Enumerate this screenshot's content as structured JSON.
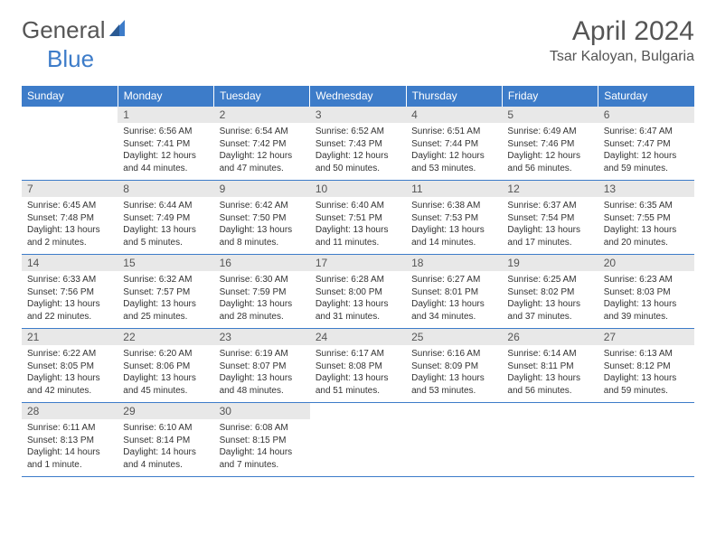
{
  "logo": {
    "general": "General",
    "blue": "Blue"
  },
  "title": "April 2024",
  "location": "Tsar Kaloyan, Bulgaria",
  "colors": {
    "header_bg": "#3d7cc9",
    "header_text": "#ffffff",
    "daynum_bg": "#e8e8e8",
    "body_text": "#333333",
    "divider": "#3d7cc9",
    "page_bg": "#ffffff"
  },
  "typography": {
    "title_fontsize": 30,
    "location_fontsize": 16,
    "header_fontsize": 12,
    "daynum_fontsize": 12,
    "body_fontsize": 10,
    "font_family": "Arial"
  },
  "weekdays": [
    "Sunday",
    "Monday",
    "Tuesday",
    "Wednesday",
    "Thursday",
    "Friday",
    "Saturday"
  ],
  "weeks": [
    [
      {
        "n": "",
        "sr": "",
        "ss": "",
        "dl": ""
      },
      {
        "n": "1",
        "sr": "Sunrise: 6:56 AM",
        "ss": "Sunset: 7:41 PM",
        "dl": "Daylight: 12 hours and 44 minutes."
      },
      {
        "n": "2",
        "sr": "Sunrise: 6:54 AM",
        "ss": "Sunset: 7:42 PM",
        "dl": "Daylight: 12 hours and 47 minutes."
      },
      {
        "n": "3",
        "sr": "Sunrise: 6:52 AM",
        "ss": "Sunset: 7:43 PM",
        "dl": "Daylight: 12 hours and 50 minutes."
      },
      {
        "n": "4",
        "sr": "Sunrise: 6:51 AM",
        "ss": "Sunset: 7:44 PM",
        "dl": "Daylight: 12 hours and 53 minutes."
      },
      {
        "n": "5",
        "sr": "Sunrise: 6:49 AM",
        "ss": "Sunset: 7:46 PM",
        "dl": "Daylight: 12 hours and 56 minutes."
      },
      {
        "n": "6",
        "sr": "Sunrise: 6:47 AM",
        "ss": "Sunset: 7:47 PM",
        "dl": "Daylight: 12 hours and 59 minutes."
      }
    ],
    [
      {
        "n": "7",
        "sr": "Sunrise: 6:45 AM",
        "ss": "Sunset: 7:48 PM",
        "dl": "Daylight: 13 hours and 2 minutes."
      },
      {
        "n": "8",
        "sr": "Sunrise: 6:44 AM",
        "ss": "Sunset: 7:49 PM",
        "dl": "Daylight: 13 hours and 5 minutes."
      },
      {
        "n": "9",
        "sr": "Sunrise: 6:42 AM",
        "ss": "Sunset: 7:50 PM",
        "dl": "Daylight: 13 hours and 8 minutes."
      },
      {
        "n": "10",
        "sr": "Sunrise: 6:40 AM",
        "ss": "Sunset: 7:51 PM",
        "dl": "Daylight: 13 hours and 11 minutes."
      },
      {
        "n": "11",
        "sr": "Sunrise: 6:38 AM",
        "ss": "Sunset: 7:53 PM",
        "dl": "Daylight: 13 hours and 14 minutes."
      },
      {
        "n": "12",
        "sr": "Sunrise: 6:37 AM",
        "ss": "Sunset: 7:54 PM",
        "dl": "Daylight: 13 hours and 17 minutes."
      },
      {
        "n": "13",
        "sr": "Sunrise: 6:35 AM",
        "ss": "Sunset: 7:55 PM",
        "dl": "Daylight: 13 hours and 20 minutes."
      }
    ],
    [
      {
        "n": "14",
        "sr": "Sunrise: 6:33 AM",
        "ss": "Sunset: 7:56 PM",
        "dl": "Daylight: 13 hours and 22 minutes."
      },
      {
        "n": "15",
        "sr": "Sunrise: 6:32 AM",
        "ss": "Sunset: 7:57 PM",
        "dl": "Daylight: 13 hours and 25 minutes."
      },
      {
        "n": "16",
        "sr": "Sunrise: 6:30 AM",
        "ss": "Sunset: 7:59 PM",
        "dl": "Daylight: 13 hours and 28 minutes."
      },
      {
        "n": "17",
        "sr": "Sunrise: 6:28 AM",
        "ss": "Sunset: 8:00 PM",
        "dl": "Daylight: 13 hours and 31 minutes."
      },
      {
        "n": "18",
        "sr": "Sunrise: 6:27 AM",
        "ss": "Sunset: 8:01 PM",
        "dl": "Daylight: 13 hours and 34 minutes."
      },
      {
        "n": "19",
        "sr": "Sunrise: 6:25 AM",
        "ss": "Sunset: 8:02 PM",
        "dl": "Daylight: 13 hours and 37 minutes."
      },
      {
        "n": "20",
        "sr": "Sunrise: 6:23 AM",
        "ss": "Sunset: 8:03 PM",
        "dl": "Daylight: 13 hours and 39 minutes."
      }
    ],
    [
      {
        "n": "21",
        "sr": "Sunrise: 6:22 AM",
        "ss": "Sunset: 8:05 PM",
        "dl": "Daylight: 13 hours and 42 minutes."
      },
      {
        "n": "22",
        "sr": "Sunrise: 6:20 AM",
        "ss": "Sunset: 8:06 PM",
        "dl": "Daylight: 13 hours and 45 minutes."
      },
      {
        "n": "23",
        "sr": "Sunrise: 6:19 AM",
        "ss": "Sunset: 8:07 PM",
        "dl": "Daylight: 13 hours and 48 minutes."
      },
      {
        "n": "24",
        "sr": "Sunrise: 6:17 AM",
        "ss": "Sunset: 8:08 PM",
        "dl": "Daylight: 13 hours and 51 minutes."
      },
      {
        "n": "25",
        "sr": "Sunrise: 6:16 AM",
        "ss": "Sunset: 8:09 PM",
        "dl": "Daylight: 13 hours and 53 minutes."
      },
      {
        "n": "26",
        "sr": "Sunrise: 6:14 AM",
        "ss": "Sunset: 8:11 PM",
        "dl": "Daylight: 13 hours and 56 minutes."
      },
      {
        "n": "27",
        "sr": "Sunrise: 6:13 AM",
        "ss": "Sunset: 8:12 PM",
        "dl": "Daylight: 13 hours and 59 minutes."
      }
    ],
    [
      {
        "n": "28",
        "sr": "Sunrise: 6:11 AM",
        "ss": "Sunset: 8:13 PM",
        "dl": "Daylight: 14 hours and 1 minute."
      },
      {
        "n": "29",
        "sr": "Sunrise: 6:10 AM",
        "ss": "Sunset: 8:14 PM",
        "dl": "Daylight: 14 hours and 4 minutes."
      },
      {
        "n": "30",
        "sr": "Sunrise: 6:08 AM",
        "ss": "Sunset: 8:15 PM",
        "dl": "Daylight: 14 hours and 7 minutes."
      },
      {
        "n": "",
        "sr": "",
        "ss": "",
        "dl": ""
      },
      {
        "n": "",
        "sr": "",
        "ss": "",
        "dl": ""
      },
      {
        "n": "",
        "sr": "",
        "ss": "",
        "dl": ""
      },
      {
        "n": "",
        "sr": "",
        "ss": "",
        "dl": ""
      }
    ]
  ]
}
